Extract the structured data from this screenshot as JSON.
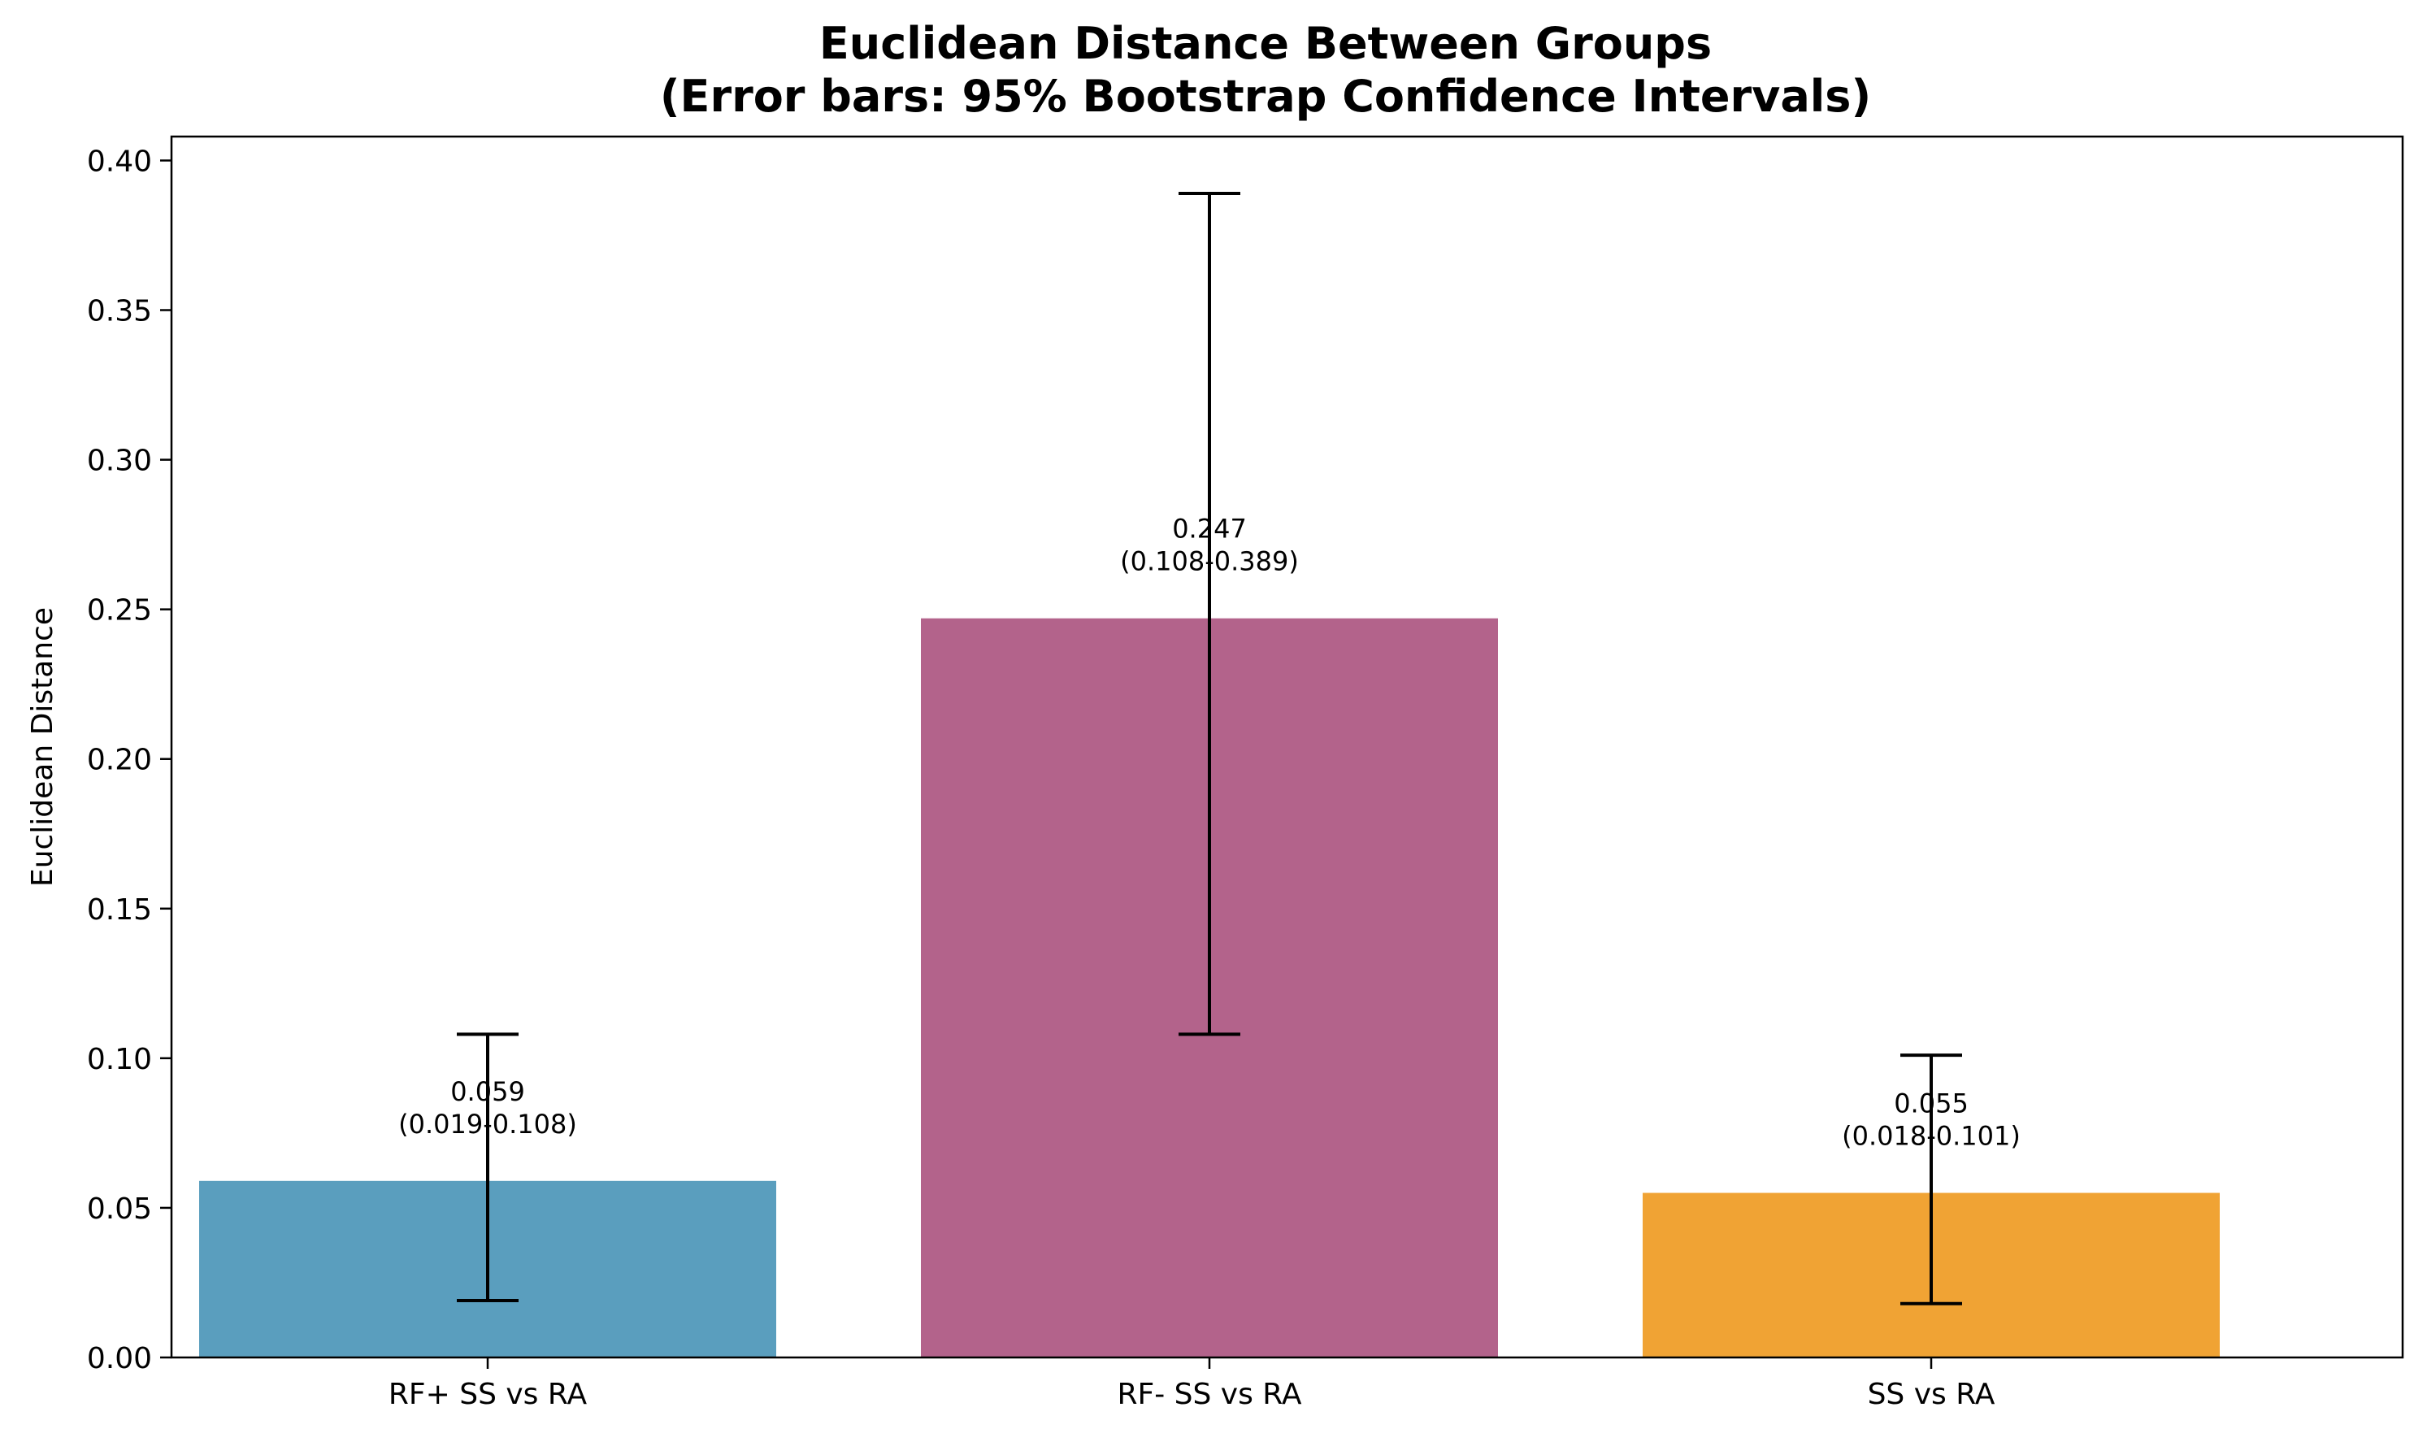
{
  "chart_data": {
    "type": "bar",
    "title": "Euclidean Distance Between Groups",
    "subtitle": "(Error bars: 95% Bootstrap Confidence Intervals)",
    "xlabel": "",
    "ylabel": "Euclidean Distance",
    "ylim": [
      0,
      0.408
    ],
    "yticks": [
      0.0,
      0.05,
      0.1,
      0.15,
      0.2,
      0.25,
      0.3,
      0.35,
      0.4
    ],
    "ytick_labels": [
      "0.00",
      "0.05",
      "0.10",
      "0.15",
      "0.20",
      "0.25",
      "0.30",
      "0.35",
      "0.40"
    ],
    "categories": [
      "RF+ SS vs RA",
      "RF- SS vs RA",
      "SS vs RA"
    ],
    "values": [
      0.059,
      0.247,
      0.055
    ],
    "ci_low": [
      0.019,
      0.108,
      0.018
    ],
    "ci_high": [
      0.108,
      0.389,
      0.101
    ],
    "value_labels": [
      "0.059",
      "0.247",
      "0.055"
    ],
    "ci_labels": [
      "(0.019-0.108)",
      "(0.108-0.389)",
      "(0.018-0.101)"
    ],
    "colors": [
      "#5a9ebe",
      "#b3638b",
      "#f0a334"
    ],
    "grid": false,
    "legend": "none"
  }
}
